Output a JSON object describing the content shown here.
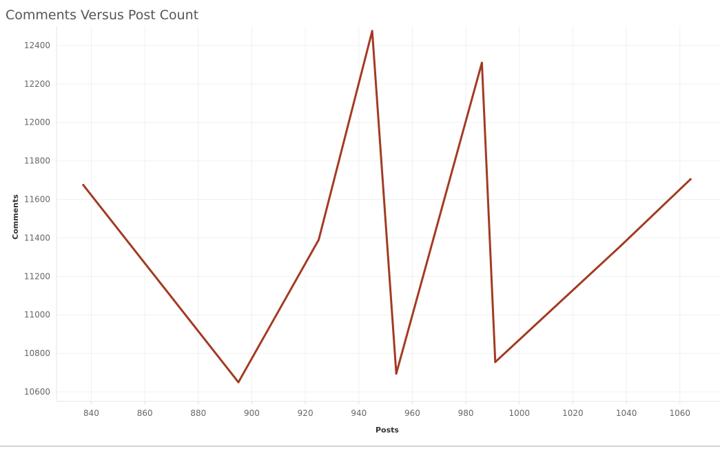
{
  "chart_data": {
    "type": "line",
    "title": "Comments Versus Post Count",
    "xlabel": "Posts",
    "ylabel": "Comments",
    "xlim": [
      827,
      1075
    ],
    "ylim": [
      10550,
      12500
    ],
    "x_ticks": [
      840,
      860,
      880,
      900,
      920,
      940,
      960,
      980,
      1000,
      1020,
      1040,
      1060
    ],
    "y_ticks": [
      10600,
      10800,
      11000,
      11200,
      11400,
      11600,
      11800,
      12000,
      12200,
      12400
    ],
    "grid": true,
    "line_color": "#a33a22",
    "series": [
      {
        "x": [
          837,
          895,
          925,
          945,
          954,
          986,
          991,
          1038,
          1064
        ],
        "values": [
          11675,
          10650,
          11390,
          12475,
          10695,
          12310,
          10755,
          11360,
          11705
        ]
      }
    ]
  }
}
